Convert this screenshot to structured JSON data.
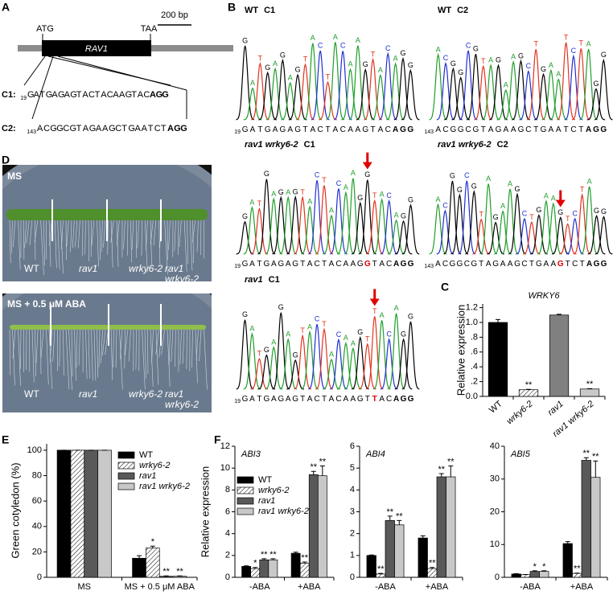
{
  "panel_a": {
    "letter": "A",
    "scale_bar": "200 bp",
    "start_codon": "ATG",
    "stop_codon": "TAA",
    "gene": "RAV1",
    "targets": [
      {
        "label": "C1:",
        "position": "19",
        "sequence": "GATGAGAGTACTACAAGTACAGG"
      },
      {
        "label": "C2:",
        "position": "143",
        "sequence": "ACGGCGTAGAAGCTGAATCTAGG"
      }
    ]
  },
  "panel_b": {
    "letter": "B",
    "traces": [
      {
        "genotype": "WT",
        "target": "C1",
        "position": "19",
        "sequence": "GATGAGAGTACTACAAGTACAGG"
      },
      {
        "genotype": "WT",
        "target": "C2",
        "position": "143",
        "sequence": "ACGGCGTAGAAGCTGAATCTAGG"
      },
      {
        "genotype": "rav1 wrky6-2",
        "target": "C1",
        "position": "19",
        "sequence": "GATGAGAGTACTACAAGGTACAGG"
      },
      {
        "genotype": "rav1 wrky6-2",
        "target": "C2",
        "position": "143",
        "sequence": "ACGGCGTAGAAGCTGAAGTCTAGG"
      },
      {
        "genotype": "rav1",
        "target": "C1",
        "position": "19",
        "sequence": "GATGAGAGTACTACAAGTTACAGG"
      }
    ]
  },
  "panel_d": {
    "letter": "D",
    "plates": [
      {
        "medium": "MS",
        "genotypes": [
          "WT",
          "rav1",
          "wrky6-2",
          "rav1 wrky6-2"
        ]
      },
      {
        "medium": "MS + 0.5 μM ABA",
        "genotypes": [
          "WT",
          "rav1",
          "wrky6-2",
          "rav1 wrky6-2"
        ]
      }
    ]
  },
  "chart_data": [
    {
      "panel": "C",
      "type": "bar",
      "title": "WRKY6",
      "y_label": "Relative expression",
      "categories": [
        "WT",
        "wrky6-2",
        "rav1",
        "rav1 wrky6-2"
      ],
      "values": [
        1.0,
        0.09,
        1.1,
        0.1
      ],
      "errors": [
        0.04,
        0.005,
        0.01,
        0.005
      ],
      "annotations": [
        null,
        "**",
        null,
        "**"
      ],
      "colors": [
        "#000000",
        "#ffffff",
        "#808080",
        "#c8c8c8"
      ],
      "hatched": [
        false,
        true,
        false,
        false
      ],
      "ylim": [
        0,
        1.25
      ],
      "yticks": [
        {
          "value": 0,
          "label": "0.0"
        },
        {
          "value": 0.2,
          "label": ".2"
        },
        {
          "value": 0.4,
          "label": ".4"
        },
        {
          "value": 0.6,
          "label": ".6"
        },
        {
          "value": 0.8,
          "label": ".8"
        },
        {
          "value": 1,
          "label": "1.0"
        },
        {
          "value": 1.2,
          "label": "1.2"
        }
      ]
    },
    {
      "panel": "E",
      "type": "bar",
      "y_label": "Green cotyledon (%)",
      "categories": [
        "MS",
        "MS + 0.5 μM ABA"
      ],
      "series": [
        {
          "name": "WT",
          "color": "#000000",
          "hatched": false,
          "values": [
            100,
            15
          ],
          "errors": [
            0,
            2
          ],
          "annotations": [
            null,
            null
          ]
        },
        {
          "name": "wrky6-2",
          "color": "#ffffff",
          "hatched": true,
          "values": [
            100,
            23
          ],
          "errors": [
            0,
            1.5
          ],
          "annotations": [
            null,
            "*"
          ]
        },
        {
          "name": "rav1",
          "color": "#595959",
          "hatched": false,
          "values": [
            100,
            0.8
          ],
          "errors": [
            0,
            0.3
          ],
          "annotations": [
            null,
            "**"
          ]
        },
        {
          "name": "rav1 wrky6-2",
          "color": "#c8c8c8",
          "hatched": false,
          "values": [
            100,
            0.8
          ],
          "errors": [
            0,
            0.3
          ],
          "annotations": [
            null,
            "**"
          ]
        }
      ],
      "ylim": [
        0,
        105
      ],
      "yticks": [
        0,
        20,
        40,
        60,
        80,
        100
      ],
      "legend": "upper right"
    },
    {
      "panel": "F",
      "type": "bar",
      "title": "ABI3",
      "y_label": "Relative expression",
      "categories": [
        "-ABA",
        "+ABA"
      ],
      "series": [
        {
          "name": "WT",
          "color": "#000000",
          "hatched": false,
          "values": [
            1.0,
            2.2
          ],
          "errors": [
            0.05,
            0.1
          ],
          "annotations": [
            null,
            null
          ]
        },
        {
          "name": "wrky6-2",
          "color": "#ffffff",
          "hatched": true,
          "values": [
            0.8,
            1.3
          ],
          "errors": [
            0.1,
            0.1
          ],
          "annotations": [
            "*",
            "**"
          ]
        },
        {
          "name": "rav1",
          "color": "#595959",
          "hatched": false,
          "values": [
            1.6,
            9.4
          ],
          "errors": [
            0.1,
            0.3
          ],
          "annotations": [
            "**",
            "**"
          ]
        },
        {
          "name": "rav1 wrky6-2",
          "color": "#c8c8c8",
          "hatched": false,
          "values": [
            1.6,
            9.3
          ],
          "errors": [
            0.1,
            0.9
          ],
          "annotations": [
            "**",
            "**"
          ]
        }
      ],
      "ylim": [
        0,
        12
      ],
      "yticks": [
        0,
        2,
        4,
        6,
        8,
        10,
        12
      ],
      "legend": "upper left"
    },
    {
      "type": "bar",
      "title": "ABI4",
      "categories": [
        "-ABA",
        "+ABA"
      ],
      "series": [
        {
          "color": "#000000",
          "hatched": false,
          "values": [
            1.0,
            1.8
          ],
          "errors": [
            0.02,
            0.1
          ],
          "annotations": [
            null,
            null
          ]
        },
        {
          "color": "#ffffff",
          "hatched": true,
          "values": [
            0.15,
            0.4
          ],
          "errors": [
            0.03,
            0.05
          ],
          "annotations": [
            "**",
            "**"
          ]
        },
        {
          "color": "#595959",
          "hatched": false,
          "values": [
            2.6,
            4.6
          ],
          "errors": [
            0.2,
            0.15
          ],
          "annotations": [
            "**",
            "**"
          ]
        },
        {
          "color": "#c8c8c8",
          "hatched": false,
          "values": [
            2.4,
            4.6
          ],
          "errors": [
            0.2,
            0.5
          ],
          "annotations": [
            "**",
            "**"
          ]
        }
      ],
      "ylim": [
        0,
        6
      ],
      "yticks": [
        0,
        1,
        2,
        3,
        4,
        5,
        6
      ]
    },
    {
      "type": "bar",
      "title": "ABI5",
      "categories": [
        "-ABA",
        "+ABA"
      ],
      "series": [
        {
          "color": "#000000",
          "hatched": false,
          "values": [
            1.0,
            10.3
          ],
          "errors": [
            0.1,
            0.6
          ],
          "annotations": [
            null,
            null
          ]
        },
        {
          "color": "#ffffff",
          "hatched": true,
          "values": [
            0.8,
            1.2
          ],
          "errors": [
            0.05,
            0.1
          ],
          "annotations": [
            null,
            "**"
          ]
        },
        {
          "color": "#595959",
          "hatched": false,
          "values": [
            1.8,
            35.7
          ],
          "errors": [
            0.2,
            0.8
          ],
          "annotations": [
            "*",
            "**"
          ]
        },
        {
          "color": "#c8c8c8",
          "hatched": false,
          "values": [
            1.8,
            30.5
          ],
          "errors": [
            0.2,
            5
          ],
          "annotations": [
            "*",
            "**"
          ]
        }
      ],
      "ylim": [
        0,
        40
      ],
      "yticks": [
        0,
        10,
        20,
        30,
        40
      ]
    }
  ]
}
